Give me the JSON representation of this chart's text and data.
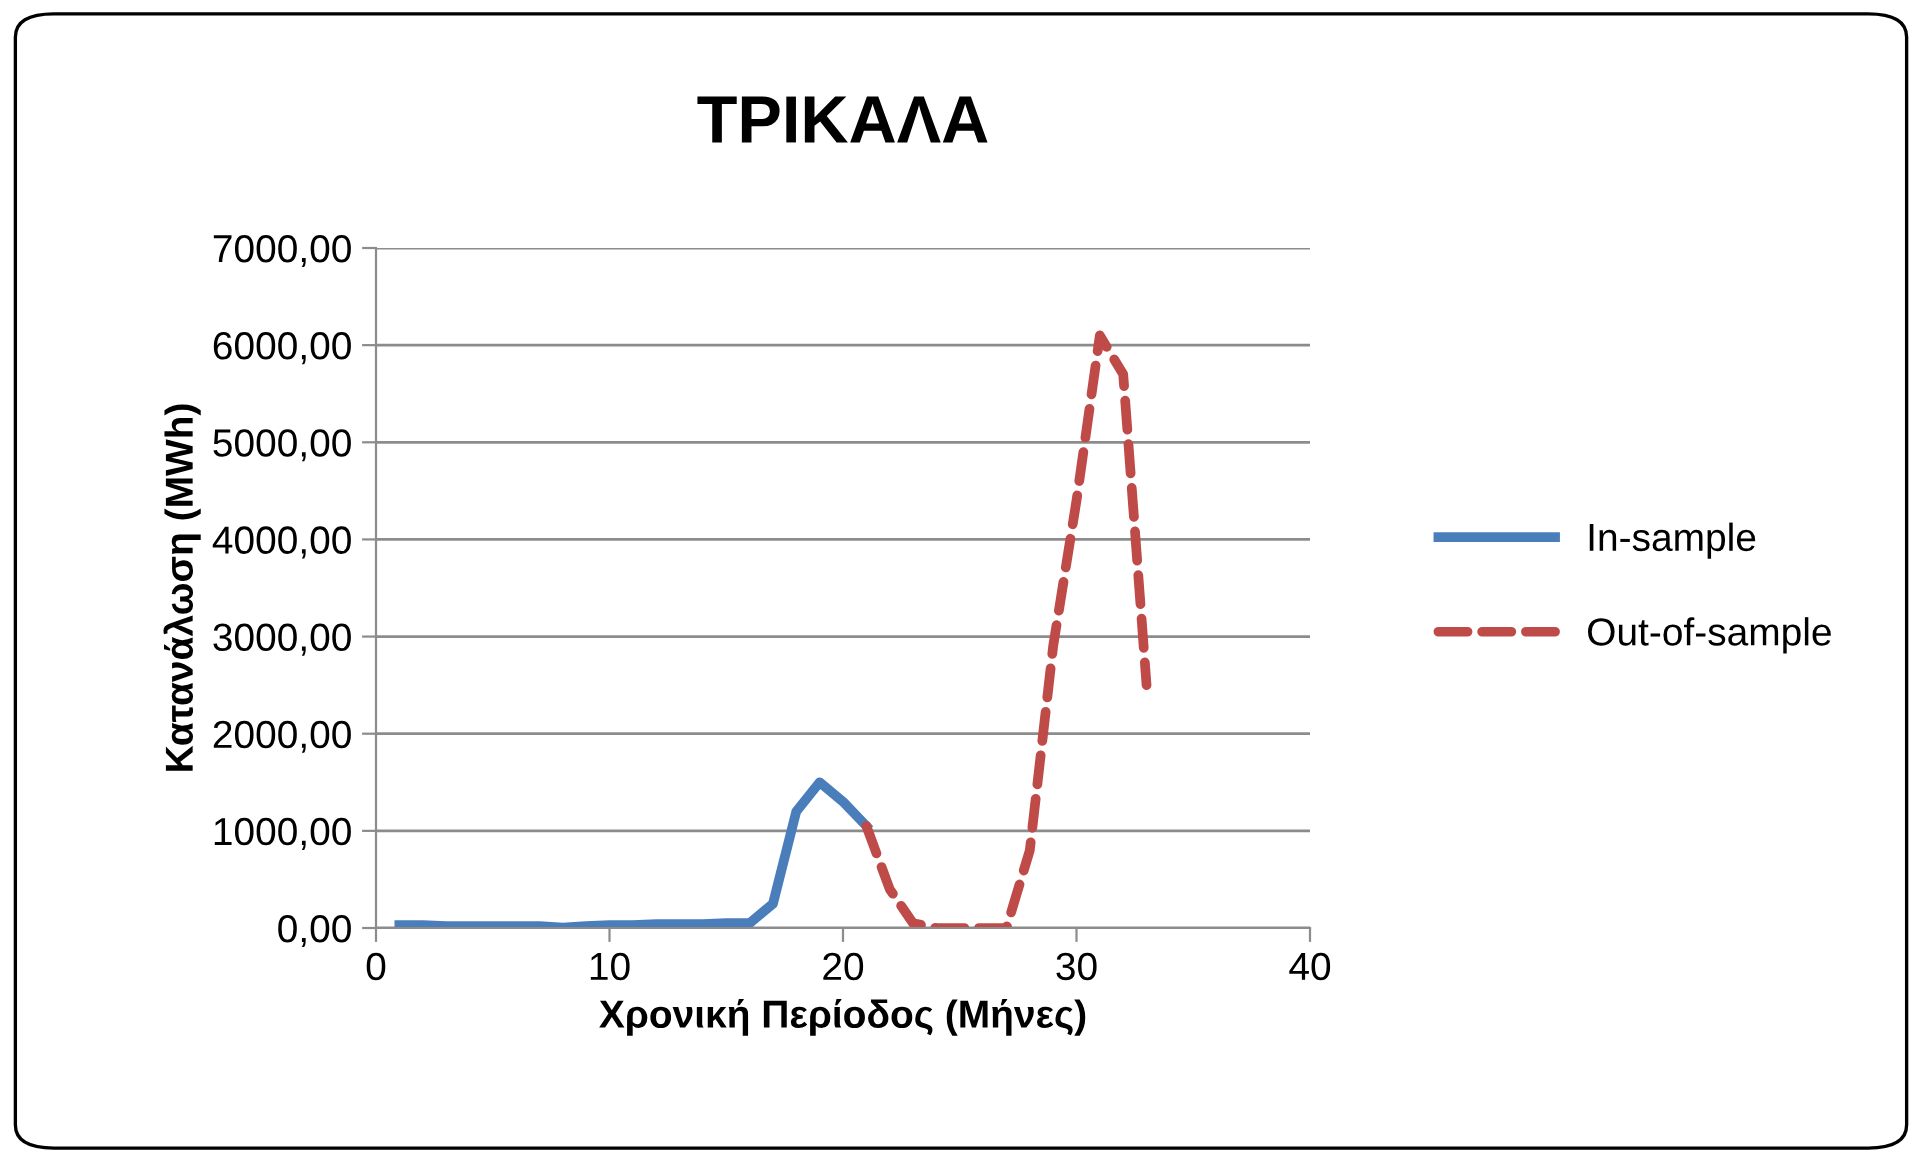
{
  "chart_data": {
    "type": "line",
    "title": "ΤΡΙΚΑΛΑ",
    "xlabel": "Χρονική Περίοδος (Μήνες)",
    "ylabel": "Κατανάλωση (MWh)",
    "xlim": [
      0,
      40
    ],
    "xticks": [
      0,
      10,
      20,
      30,
      40
    ],
    "ylim": [
      0,
      7000
    ],
    "yticks": [
      {
        "value": 0,
        "label": "0,00"
      },
      {
        "value": 1000,
        "label": "1000,00"
      },
      {
        "value": 2000,
        "label": "2000,00"
      },
      {
        "value": 3000,
        "label": "3000,00"
      },
      {
        "value": 4000,
        "label": "4000,00"
      },
      {
        "value": 5000,
        "label": "5000,00"
      },
      {
        "value": 6000,
        "label": "6000,00"
      },
      {
        "value": 7000,
        "label": "7000,00"
      }
    ],
    "grid": "y",
    "legend": "right",
    "marker": "none",
    "series": [
      {
        "name": "In-sample",
        "color": "#4a7ebb",
        "line_style": "solid",
        "x": [
          1,
          2,
          3,
          4,
          5,
          6,
          7,
          8,
          9,
          10,
          11,
          12,
          13,
          14,
          15,
          16,
          17,
          18,
          19,
          20,
          21
        ],
        "values": [
          30,
          30,
          20,
          20,
          20,
          20,
          20,
          5,
          20,
          30,
          30,
          40,
          40,
          40,
          50,
          50,
          250,
          1200,
          1500,
          1300,
          1050
        ]
      },
      {
        "name": "Out-of-sample",
        "color": "#be4b48",
        "line_style": "dashed",
        "x": [
          21,
          22,
          23,
          24,
          25,
          26,
          27,
          28,
          29,
          30,
          31,
          32,
          33
        ],
        "values": [
          1050,
          400,
          50,
          0,
          0,
          0,
          0,
          800,
          2900,
          4400,
          6100,
          5700,
          2500
        ]
      }
    ]
  }
}
